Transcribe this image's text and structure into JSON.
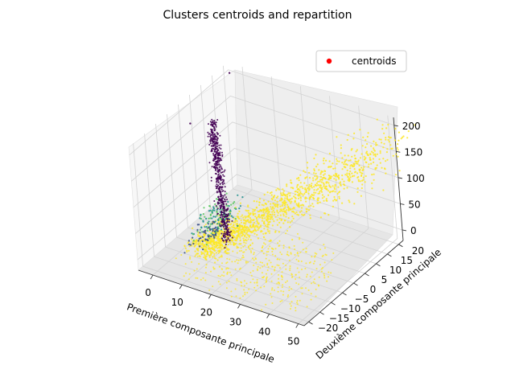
{
  "chart_data": {
    "type": "scatter3d",
    "title": "Clusters centroids and repartition",
    "xlabel": "Première composante principale",
    "ylabel": "Deuxième composante principale",
    "zlabel": "",
    "x_ticks": [
      "0",
      "10",
      "20",
      "30",
      "40",
      "50"
    ],
    "y_ticks": [
      "−20",
      "−15",
      "−10",
      "−5",
      "0",
      "5",
      "10",
      "15",
      "20"
    ],
    "z_ticks": [
      "0",
      "50",
      "100",
      "150",
      "200"
    ],
    "xlim": [
      -5,
      52
    ],
    "ylim": [
      -22,
      22
    ],
    "zlim": [
      -20,
      215
    ],
    "grid": true,
    "legend": {
      "position": "top-right",
      "entries": [
        {
          "label": "centroids",
          "color": "#ff0000"
        }
      ]
    },
    "colors": {
      "cluster_dark": "#440154",
      "cluster_mid": "#3b528b",
      "cluster_teal": "#21908d",
      "cluster_green": "#5dc863",
      "cluster_yellow": "#fde725",
      "centroid": "#ff0000"
    }
  }
}
